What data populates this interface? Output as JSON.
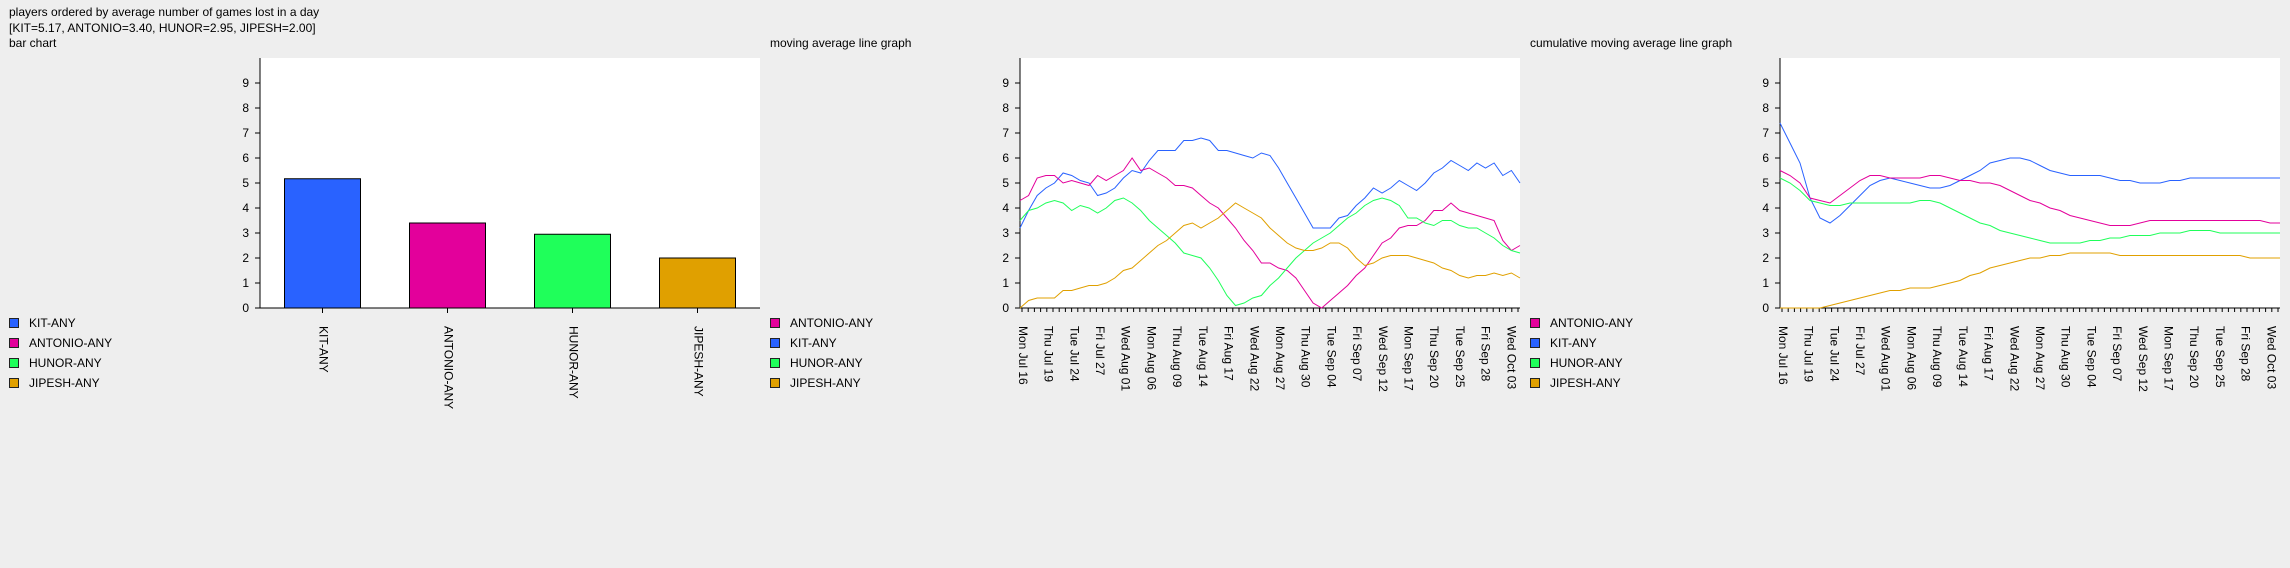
{
  "header": {
    "line1": "players ordered by average number of games lost in a day",
    "line2": "[KIT=5.17, ANTONIO=3.40, HUNOR=2.95, JIPESH=2.00]"
  },
  "colors": {
    "KIT": "#2962ff",
    "ANTONIO": "#e3009b",
    "HUNOR": "#1fff5a",
    "JIPESH": "#e0a000"
  },
  "chart_data": [
    {
      "type": "bar",
      "title": "bar chart",
      "categories": [
        "KIT-ANY",
        "ANTONIO-ANY",
        "HUNOR-ANY",
        "JIPESH-ANY"
      ],
      "values": [
        5.17,
        3.4,
        2.95,
        2.0
      ],
      "color_keys": [
        "KIT",
        "ANTONIO",
        "HUNOR",
        "JIPESH"
      ],
      "ylim": [
        0,
        10
      ],
      "yticks": [
        0,
        1,
        2,
        3,
        4,
        5,
        6,
        7,
        8,
        9
      ],
      "legend": [
        {
          "label": "KIT-ANY",
          "color_key": "KIT"
        },
        {
          "label": "ANTONIO-ANY",
          "color_key": "ANTONIO"
        },
        {
          "label": "HUNOR-ANY",
          "color_key": "HUNOR"
        },
        {
          "label": "JIPESH-ANY",
          "color_key": "JIPESH"
        }
      ],
      "legend_position": "left"
    },
    {
      "type": "line",
      "title": "moving average line graph",
      "xtick_labels": [
        "Mon Jul 16",
        "Thu Jul 19",
        "Tue Jul 24",
        "Fri Jul 27",
        "Wed Aug 01",
        "Mon Aug 06",
        "Thu Aug 09",
        "Tue Aug 14",
        "Fri Aug 17",
        "Wed Aug 22",
        "Mon Aug 27",
        "Thu Aug 30",
        "Tue Sep 04",
        "Fri Sep 07",
        "Wed Sep 12",
        "Mon Sep 17",
        "Thu Sep 20",
        "Tue Sep 25",
        "Fri Sep 28",
        "Wed Oct 03"
      ],
      "ylim": [
        0,
        10
      ],
      "yticks": [
        0,
        1,
        2,
        3,
        4,
        5,
        6,
        7,
        8,
        9
      ],
      "series": [
        {
          "color_key": "KIT",
          "values": [
            3.2,
            3.9,
            4.5,
            4.8,
            5.0,
            5.4,
            5.3,
            5.1,
            5.0,
            4.5,
            4.6,
            4.8,
            5.2,
            5.5,
            5.4,
            5.9,
            6.3,
            6.3,
            6.3,
            6.7,
            6.7,
            6.8,
            6.7,
            6.3,
            6.3,
            6.2,
            6.1,
            6.0,
            6.2,
            6.1,
            5.6,
            5.0,
            4.4,
            3.8,
            3.2,
            3.2,
            3.2,
            3.6,
            3.7,
            4.1,
            4.4,
            4.8,
            4.6,
            4.8,
            5.1,
            4.9,
            4.7,
            5.0,
            5.4,
            5.6,
            5.9,
            5.7,
            5.5,
            5.8,
            5.6,
            5.8,
            5.3,
            5.5,
            5.0
          ]
        },
        {
          "color_key": "ANTONIO",
          "values": [
            4.3,
            4.5,
            5.2,
            5.3,
            5.3,
            5.0,
            5.1,
            5.0,
            4.9,
            5.3,
            5.1,
            5.3,
            5.5,
            6.0,
            5.5,
            5.6,
            5.4,
            5.2,
            4.9,
            4.9,
            4.8,
            4.5,
            4.2,
            4.0,
            3.6,
            3.2,
            2.7,
            2.3,
            1.8,
            1.8,
            1.6,
            1.5,
            1.2,
            0.7,
            0.2,
            0.0,
            0.3,
            0.6,
            0.9,
            1.3,
            1.6,
            2.1,
            2.6,
            2.8,
            3.2,
            3.3,
            3.3,
            3.5,
            3.9,
            3.9,
            4.2,
            3.9,
            3.8,
            3.7,
            3.6,
            3.5,
            2.7,
            2.3,
            2.5
          ]
        },
        {
          "color_key": "HUNOR",
          "values": [
            3.5,
            3.9,
            4.0,
            4.2,
            4.3,
            4.2,
            3.9,
            4.1,
            4.0,
            3.8,
            4.0,
            4.3,
            4.4,
            4.2,
            3.9,
            3.5,
            3.2,
            2.9,
            2.6,
            2.2,
            2.1,
            2.0,
            1.6,
            1.1,
            0.5,
            0.1,
            0.2,
            0.4,
            0.5,
            0.9,
            1.2,
            1.6,
            2.0,
            2.3,
            2.6,
            2.8,
            3.0,
            3.3,
            3.6,
            3.8,
            4.1,
            4.3,
            4.4,
            4.3,
            4.1,
            3.6,
            3.6,
            3.4,
            3.3,
            3.5,
            3.5,
            3.3,
            3.2,
            3.2,
            3.0,
            2.8,
            2.5,
            2.3,
            2.2
          ]
        },
        {
          "color_key": "JIPESH",
          "values": [
            0.0,
            0.3,
            0.4,
            0.4,
            0.4,
            0.7,
            0.7,
            0.8,
            0.9,
            0.9,
            1.0,
            1.2,
            1.5,
            1.6,
            1.9,
            2.2,
            2.5,
            2.7,
            3.0,
            3.3,
            3.4,
            3.2,
            3.4,
            3.6,
            3.9,
            4.2,
            4.0,
            3.8,
            3.6,
            3.2,
            2.9,
            2.6,
            2.4,
            2.3,
            2.3,
            2.4,
            2.6,
            2.6,
            2.4,
            2.0,
            1.7,
            1.8,
            2.0,
            2.1,
            2.1,
            2.1,
            2.0,
            1.9,
            1.8,
            1.6,
            1.5,
            1.3,
            1.2,
            1.3,
            1.3,
            1.4,
            1.3,
            1.4,
            1.2
          ]
        }
      ],
      "legend": [
        {
          "label": "ANTONIO-ANY",
          "color_key": "ANTONIO"
        },
        {
          "label": "KIT-ANY",
          "color_key": "KIT"
        },
        {
          "label": "HUNOR-ANY",
          "color_key": "HUNOR"
        },
        {
          "label": "JIPESH-ANY",
          "color_key": "JIPESH"
        }
      ],
      "legend_position": "left"
    },
    {
      "type": "line",
      "title": "cumulative moving average line graph",
      "xtick_labels": [
        "Mon Jul 16",
        "Thu Jul 19",
        "Tue Jul 24",
        "Fri Jul 27",
        "Wed Aug 01",
        "Mon Aug 06",
        "Thu Aug 09",
        "Tue Aug 14",
        "Fri Aug 17",
        "Wed Aug 22",
        "Mon Aug 27",
        "Thu Aug 30",
        "Tue Sep 04",
        "Fri Sep 07",
        "Wed Sep 12",
        "Mon Sep 17",
        "Thu Sep 20",
        "Tue Sep 25",
        "Fri Sep 28",
        "Wed Oct 03"
      ],
      "ylim": [
        0,
        10
      ],
      "yticks": [
        0,
        1,
        2,
        3,
        4,
        5,
        6,
        7,
        8,
        9
      ],
      "series": [
        {
          "color_key": "KIT",
          "values": [
            7.4,
            6.6,
            5.8,
            4.4,
            3.6,
            3.4,
            3.7,
            4.1,
            4.5,
            4.9,
            5.1,
            5.2,
            5.1,
            5.0,
            4.9,
            4.8,
            4.8,
            4.9,
            5.1,
            5.3,
            5.5,
            5.8,
            5.9,
            6.0,
            6.0,
            5.9,
            5.7,
            5.5,
            5.4,
            5.3,
            5.3,
            5.3,
            5.3,
            5.2,
            5.1,
            5.1,
            5.0,
            5.0,
            5.0,
            5.1,
            5.1,
            5.2,
            5.2,
            5.2,
            5.2,
            5.2,
            5.2,
            5.2,
            5.2,
            5.2,
            5.2
          ]
        },
        {
          "color_key": "ANTONIO",
          "values": [
            5.5,
            5.3,
            5.0,
            4.4,
            4.3,
            4.2,
            4.5,
            4.8,
            5.1,
            5.3,
            5.3,
            5.2,
            5.2,
            5.2,
            5.2,
            5.3,
            5.3,
            5.2,
            5.1,
            5.1,
            5.0,
            5.0,
            4.9,
            4.7,
            4.5,
            4.3,
            4.2,
            4.0,
            3.9,
            3.7,
            3.6,
            3.5,
            3.4,
            3.3,
            3.3,
            3.3,
            3.4,
            3.5,
            3.5,
            3.5,
            3.5,
            3.5,
            3.5,
            3.5,
            3.5,
            3.5,
            3.5,
            3.5,
            3.5,
            3.4,
            3.4
          ]
        },
        {
          "color_key": "HUNOR",
          "values": [
            5.2,
            5.0,
            4.7,
            4.3,
            4.2,
            4.1,
            4.1,
            4.2,
            4.2,
            4.2,
            4.2,
            4.2,
            4.2,
            4.2,
            4.3,
            4.3,
            4.2,
            4.0,
            3.8,
            3.6,
            3.4,
            3.3,
            3.1,
            3.0,
            2.9,
            2.8,
            2.7,
            2.6,
            2.6,
            2.6,
            2.6,
            2.7,
            2.7,
            2.8,
            2.8,
            2.9,
            2.9,
            2.9,
            3.0,
            3.0,
            3.0,
            3.1,
            3.1,
            3.1,
            3.0,
            3.0,
            3.0,
            3.0,
            3.0,
            3.0,
            3.0
          ]
        },
        {
          "color_key": "JIPESH",
          "values": [
            0.0,
            0.0,
            0.0,
            0.0,
            0.0,
            0.1,
            0.2,
            0.3,
            0.4,
            0.5,
            0.6,
            0.7,
            0.7,
            0.8,
            0.8,
            0.8,
            0.9,
            1.0,
            1.1,
            1.3,
            1.4,
            1.6,
            1.7,
            1.8,
            1.9,
            2.0,
            2.0,
            2.1,
            2.1,
            2.2,
            2.2,
            2.2,
            2.2,
            2.2,
            2.1,
            2.1,
            2.1,
            2.1,
            2.1,
            2.1,
            2.1,
            2.1,
            2.1,
            2.1,
            2.1,
            2.1,
            2.1,
            2.0,
            2.0,
            2.0,
            2.0
          ]
        }
      ],
      "legend": [
        {
          "label": "ANTONIO-ANY",
          "color_key": "ANTONIO"
        },
        {
          "label": "KIT-ANY",
          "color_key": "KIT"
        },
        {
          "label": "HUNOR-ANY",
          "color_key": "HUNOR"
        },
        {
          "label": "JIPESH-ANY",
          "color_key": "JIPESH"
        }
      ],
      "legend_position": "left"
    }
  ]
}
